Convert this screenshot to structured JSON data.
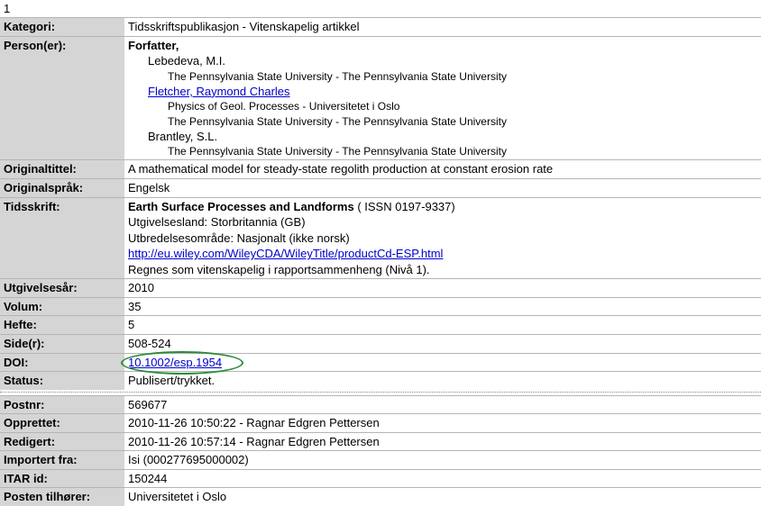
{
  "index": "1",
  "labels": {
    "kategori": "Kategori:",
    "personer": "Person(er):",
    "originaltittel": "Originaltittel:",
    "originalsprak": "Originalspråk:",
    "tidsskrift": "Tidsskrift:",
    "utgivelsesar": "Utgivelsesår:",
    "volum": "Volum:",
    "hefte": "Hefte:",
    "sider": "Side(r):",
    "doi": "DOI:",
    "status": "Status:",
    "postnr": "Postnr:",
    "opprettet": "Opprettet:",
    "redigert": "Redigert:",
    "importert": "Importert fra:",
    "itar": "ITAR id:",
    "tilhorer": "Posten tilhører:"
  },
  "kategori": "Tidsskriftspublikasjon - Vitenskapelig artikkel",
  "persons": {
    "role": "Forfatter,",
    "p1_name": "Lebedeva, M.I.",
    "p1_aff1": "The Pennsylvania State University - The Pennsylvania State University",
    "p2_name": "Fletcher, Raymond Charles",
    "p2_aff1": "Physics of Geol. Processes - Universitetet i Oslo",
    "p2_aff2": "The Pennsylvania State University - The Pennsylvania State University",
    "p3_name": "Brantley, S.L.",
    "p3_aff1": "The Pennsylvania State University - The Pennsylvania State University"
  },
  "originaltittel": "A mathematical model for steady-state regolith production at constant erosion rate",
  "originalsprak": "Engelsk",
  "tidsskrift": {
    "name": "Earth Surface Processes and Landforms",
    "issn": " ( ISSN 0197-9337)",
    "utgivelsesland": "Utgivelsesland: Storbritannia (GB)",
    "utbredelse": "Utbredelsesområde: Nasjonalt (ikke norsk)",
    "url": "http://eu.wiley.com/WileyCDA/WileyTitle/productCd-ESP.html",
    "vitenskapelig": "Regnes som vitenskapelig i rapportsammenheng (Nivå 1)."
  },
  "utgivelsesar": "2010",
  "volum": "35",
  "hefte": "5",
  "sider": "508-524",
  "doi": "10.1002/esp.1954",
  "status": "Publisert/trykket.",
  "postnr": "569677",
  "opprettet": "2010-11-26 10:50:22 - Ragnar Edgren Pettersen",
  "redigert": "2010-11-26 10:57:14 - Ragnar Edgren Pettersen",
  "importert": "Isi (000277695000002)",
  "itar": "150244",
  "tilhorer": "Universitetet i Oslo"
}
